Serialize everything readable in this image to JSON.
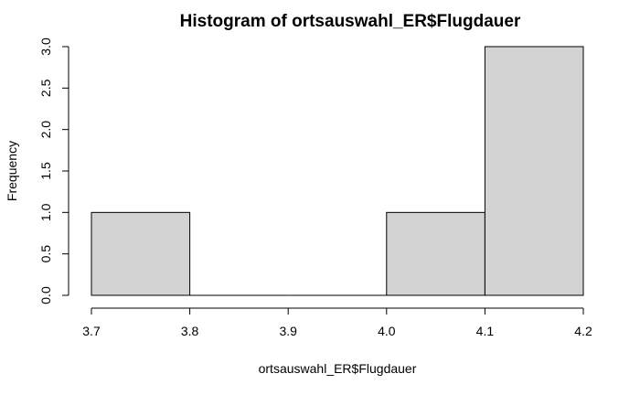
{
  "chart_data": {
    "type": "bar",
    "title": "Histogram of ortsauswahl_ER$Flugdauer",
    "xlabel": "ortsauswahl_ER$Flugdauer",
    "ylabel": "Frequency",
    "bins": [
      {
        "from": 3.7,
        "to": 3.8,
        "count": 1
      },
      {
        "from": 3.8,
        "to": 3.9,
        "count": 0
      },
      {
        "from": 3.9,
        "to": 4.0,
        "count": 0
      },
      {
        "from": 4.0,
        "to": 4.1,
        "count": 1
      },
      {
        "from": 4.1,
        "to": 4.2,
        "count": 3
      }
    ],
    "xlim": [
      3.7,
      4.2
    ],
    "ylim": [
      0,
      3
    ],
    "x_ticks": [
      "3.7",
      "3.8",
      "3.9",
      "4.0",
      "4.1",
      "4.2"
    ],
    "y_ticks": [
      "0.0",
      "0.5",
      "1.0",
      "1.5",
      "2.0",
      "2.5",
      "3.0"
    ],
    "bar_fill": "#d3d3d3",
    "bar_stroke": "#000000",
    "grid": false,
    "legend": "none"
  }
}
